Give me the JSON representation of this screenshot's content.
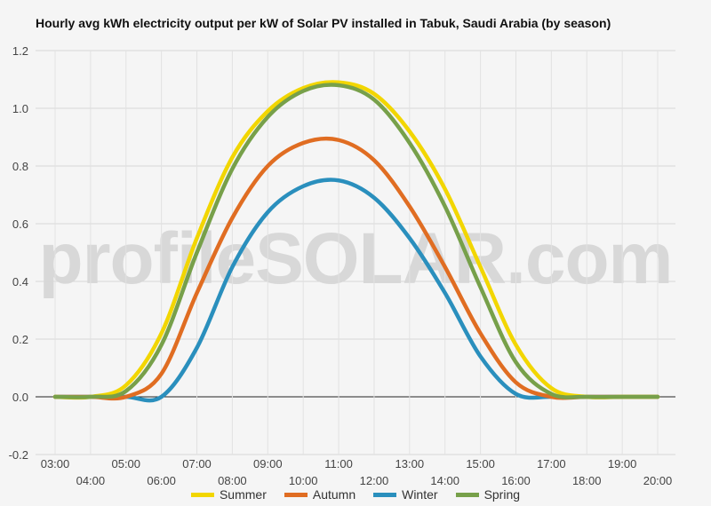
{
  "watermark": "profileSOLAR.com",
  "chart_data": {
    "type": "line",
    "title": "Hourly avg kWh electricity output per kW of Solar PV installed in Tabuk, Saudi Arabia (by season)",
    "xlabel": "",
    "ylabel": "",
    "ylim": [
      -0.2,
      1.2
    ],
    "yticks": [
      -0.2,
      0.0,
      0.2,
      0.4,
      0.6,
      0.8,
      1.0,
      1.2
    ],
    "ytick_labels": [
      "-0.2",
      "0.0",
      "0.2",
      "0.4",
      "0.6",
      "0.8",
      "1.0",
      "1.2"
    ],
    "x": [
      "03:00",
      "04:00",
      "05:00",
      "06:00",
      "07:00",
      "08:00",
      "09:00",
      "10:00",
      "11:00",
      "12:00",
      "13:00",
      "14:00",
      "15:00",
      "16:00",
      "17:00",
      "18:00",
      "19:00",
      "20:00"
    ],
    "grid": true,
    "legend_position": "bottom",
    "series": [
      {
        "name": "Summer",
        "color": "#f2d600",
        "values": [
          0.0,
          0.0,
          0.04,
          0.22,
          0.55,
          0.83,
          0.99,
          1.07,
          1.09,
          1.05,
          0.92,
          0.72,
          0.45,
          0.18,
          0.03,
          0.0,
          0.0,
          0.0
        ]
      },
      {
        "name": "Autumn",
        "color": "#e06d22",
        "values": [
          0.0,
          0.0,
          0.0,
          0.08,
          0.36,
          0.62,
          0.8,
          0.88,
          0.89,
          0.82,
          0.66,
          0.45,
          0.22,
          0.05,
          0.0,
          0.0,
          0.0,
          0.0
        ]
      },
      {
        "name": "Winter",
        "color": "#2a8fbd",
        "values": [
          0.0,
          0.0,
          0.0,
          0.0,
          0.17,
          0.45,
          0.64,
          0.73,
          0.75,
          0.69,
          0.55,
          0.36,
          0.14,
          0.01,
          0.0,
          0.0,
          0.0,
          0.0
        ]
      },
      {
        "name": "Spring",
        "color": "#77a04a",
        "values": [
          0.0,
          0.0,
          0.02,
          0.18,
          0.5,
          0.79,
          0.97,
          1.06,
          1.08,
          1.03,
          0.88,
          0.66,
          0.38,
          0.12,
          0.01,
          0.0,
          0.0,
          0.0
        ]
      }
    ]
  }
}
